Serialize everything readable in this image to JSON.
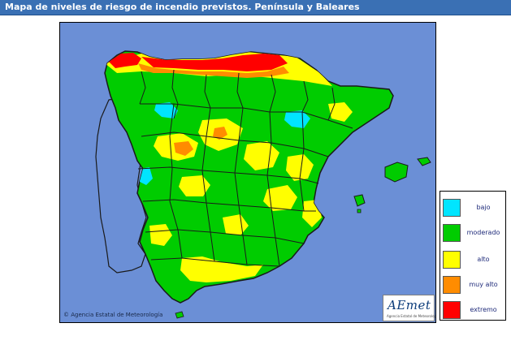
{
  "title": "Mapa de niveles de riesgo de incendio previstos. Península y Baleares",
  "credit": "© Agencia Estatal de Meteorología",
  "logo": {
    "name": "AEmet",
    "subtitle": "Agencia Estatal de Meteorología"
  },
  "legend": {
    "items": [
      {
        "label": "bajo",
        "color": "#00e5ff"
      },
      {
        "label": "moderado",
        "color": "#00cc00"
      },
      {
        "label": "alto",
        "color": "#ffff00"
      },
      {
        "label": "muy alto",
        "color": "#ff8c00"
      },
      {
        "label": "extremo",
        "color": "#ff0000"
      }
    ]
  },
  "colors": {
    "sea": "#6b8fd6",
    "border": "#1a1a1a",
    "title_bg": "#3a70b4"
  }
}
